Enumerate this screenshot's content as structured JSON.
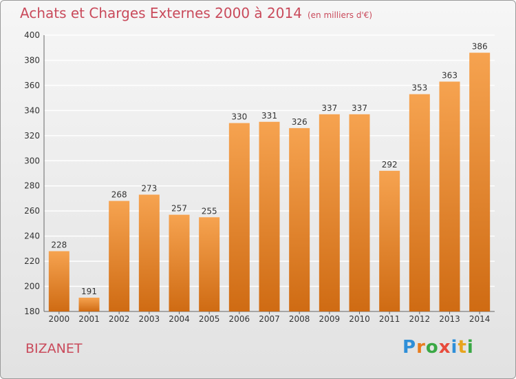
{
  "title": "Achats et Charges Externes 2000 à 2014",
  "unit": "(en milliers d'€)",
  "commune": "BIZANET",
  "logo": {
    "text": "Proxiti",
    "letter_colors": [
      "#2f8fd8",
      "#e87c1e",
      "#3aa845",
      "#e84b3c",
      "#2f8fd8",
      "#e8a41e",
      "#3aa845"
    ]
  },
  "colors": {
    "title": "#c94a5b",
    "bar_top": "#f6a350",
    "bar_bottom": "#cf6b13",
    "grid": "#ffffff"
  },
  "chart_data": {
    "type": "bar",
    "title": "Achats et Charges Externes 2000 à 2014",
    "categories": [
      "2000",
      "2001",
      "2002",
      "2003",
      "2004",
      "2005",
      "2006",
      "2007",
      "2008",
      "2009",
      "2010",
      "2011",
      "2012",
      "2013",
      "2014"
    ],
    "values": [
      228,
      191,
      268,
      273,
      257,
      255,
      330,
      331,
      326,
      337,
      337,
      292,
      353,
      363,
      386
    ],
    "xlabel": "",
    "ylabel": "",
    "ylim": [
      180,
      400
    ],
    "yticks": [
      180,
      200,
      220,
      240,
      260,
      280,
      300,
      320,
      340,
      360,
      380,
      400
    ],
    "grid": true,
    "legend": "none"
  }
}
